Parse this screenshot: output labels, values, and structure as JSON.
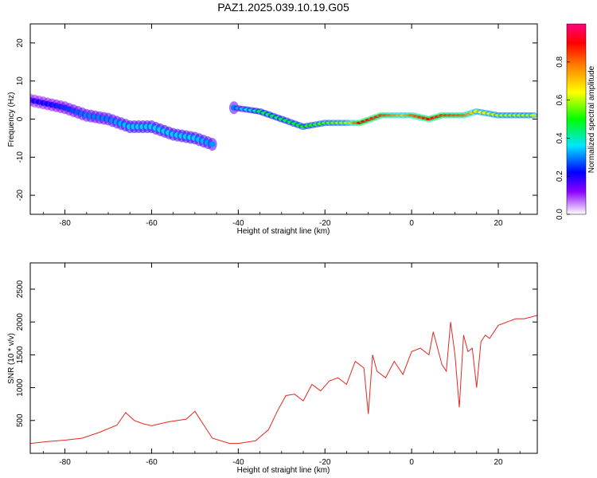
{
  "chart_data": [
    {
      "type": "heatmap",
      "title": "PAZ1.2025.039.10.19.G05",
      "xlabel": "Height of straight line (km)",
      "ylabel": "Frequency (Hz)",
      "xlim": [
        -88,
        29
      ],
      "ylim": [
        -25,
        25
      ],
      "xticks": [
        -80,
        -60,
        -40,
        -20,
        0,
        20
      ],
      "yticks": [
        -20,
        -10,
        0,
        10,
        20
      ],
      "colorbar": {
        "label": "Normalized spectral amplitude",
        "range": [
          0,
          1
        ],
        "ticks": [
          0.0,
          0.2,
          0.4,
          0.6,
          0.8
        ],
        "colormap": [
          "#ffffff",
          "#8a00ff",
          "#0000ff",
          "#00e5ff",
          "#00ff00",
          "#ffff00",
          "#ff8000",
          "#ff0000",
          "#ff0080"
        ]
      },
      "ridge": [
        {
          "x": -88,
          "y": 5,
          "amp": 0.2
        },
        {
          "x": -80,
          "y": 3,
          "amp": 0.25
        },
        {
          "x": -75,
          "y": 1,
          "amp": 0.3
        },
        {
          "x": -70,
          "y": 0,
          "amp": 0.3
        },
        {
          "x": -65,
          "y": -2,
          "amp": 0.35
        },
        {
          "x": -60,
          "y": -2,
          "amp": 0.35
        },
        {
          "x": -55,
          "y": -4,
          "amp": 0.35
        },
        {
          "x": -50,
          "y": -5,
          "amp": 0.35
        },
        {
          "x": -45,
          "y": -7,
          "amp": 0.3
        },
        {
          "x": -41,
          "y": 3,
          "amp": 0.3
        },
        {
          "x": -35,
          "y": 2,
          "amp": 0.45
        },
        {
          "x": -30,
          "y": 0,
          "amp": 0.45
        },
        {
          "x": -25,
          "y": -2,
          "amp": 0.5
        },
        {
          "x": -20,
          "y": -1,
          "amp": 0.55
        },
        {
          "x": -15,
          "y": -1,
          "amp": 0.6
        },
        {
          "x": -12,
          "y": -1,
          "amp": 0.9
        },
        {
          "x": -7,
          "y": 1,
          "amp": 0.85
        },
        {
          "x": -2,
          "y": 1,
          "amp": 0.7
        },
        {
          "x": 0,
          "y": 1,
          "amp": 0.8
        },
        {
          "x": 4,
          "y": 0,
          "amp": 0.9
        },
        {
          "x": 7,
          "y": 1,
          "amp": 0.85
        },
        {
          "x": 12,
          "y": 1,
          "amp": 0.8
        },
        {
          "x": 15,
          "y": 2,
          "amp": 0.65
        },
        {
          "x": 20,
          "y": 1,
          "amp": 0.6
        },
        {
          "x": 25,
          "y": 1,
          "amp": 0.6
        },
        {
          "x": 29,
          "y": 1,
          "amp": 0.6
        }
      ]
    },
    {
      "type": "line",
      "title": "",
      "xlabel": "Height of straight line (km)",
      "ylabel": "SNR (10 * v/v)",
      "xlim": [
        -88,
        29
      ],
      "ylim": [
        0,
        2900
      ],
      "xticks": [
        -80,
        -60,
        -40,
        -20,
        0,
        20
      ],
      "yticks": [
        500,
        1000,
        1500,
        2000,
        2500
      ],
      "series": [
        {
          "color": "#e8261f",
          "x": [
            -88,
            -84,
            -80,
            -76,
            -72,
            -68,
            -66,
            -64,
            -62,
            -60,
            -56,
            -52,
            -50,
            -46,
            -42,
            -40,
            -36,
            -33,
            -31,
            -29,
            -27,
            -25,
            -23,
            -21,
            -19,
            -17,
            -15,
            -13,
            -11,
            -10,
            -9,
            -8,
            -6,
            -4,
            -2,
            0,
            2,
            4,
            5,
            6,
            7,
            8,
            9,
            10,
            11,
            12,
            13,
            14,
            15,
            16,
            17,
            18,
            20,
            22,
            24,
            26,
            29
          ],
          "y": [
            150,
            180,
            200,
            230,
            320,
            430,
            620,
            500,
            450,
            420,
            480,
            520,
            640,
            230,
            150,
            150,
            190,
            360,
            640,
            880,
            900,
            800,
            1050,
            950,
            1100,
            1150,
            1050,
            1400,
            1300,
            600,
            1500,
            1250,
            1150,
            1400,
            1200,
            1550,
            1600,
            1500,
            1850,
            1600,
            1350,
            1250,
            2000,
            1500,
            700,
            1800,
            1550,
            1600,
            1000,
            1700,
            1800,
            1750,
            1950,
            2000,
            2050,
            2050,
            2100
          ]
        }
      ]
    }
  ]
}
